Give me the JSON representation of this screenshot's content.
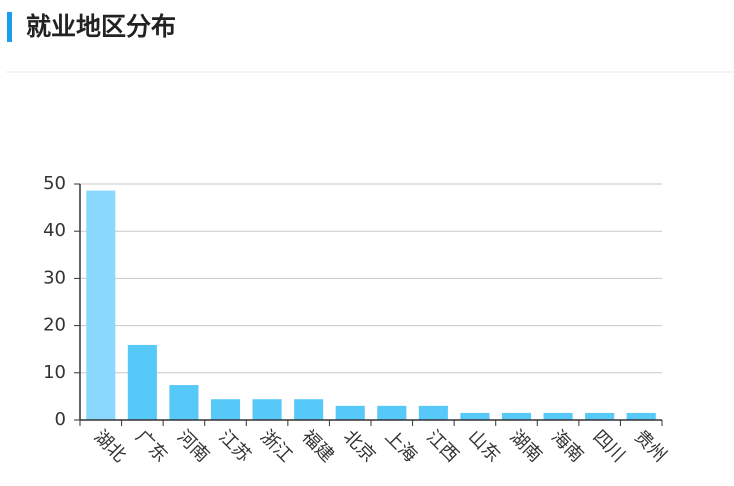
{
  "chart_data": {
    "type": "bar",
    "title": "就业地区分布",
    "categories": [
      "湖北",
      "广东",
      "河南",
      "江苏",
      "浙江",
      "福建",
      "北京",
      "上海",
      "江西",
      "山东",
      "湖南",
      "海南",
      "四川",
      "贵州"
    ],
    "values": [
      48.6,
      15.9,
      7.4,
      4.4,
      4.4,
      4.4,
      3.0,
      3.0,
      3.0,
      1.5,
      1.5,
      1.5,
      1.5,
      1.5
    ],
    "colors": [
      "#8ad8fd",
      "#56c9f9",
      "#56c9f9",
      "#56c9f9",
      "#56c9f9",
      "#56c9f9",
      "#56c9f9",
      "#56c9f9",
      "#56c9f9",
      "#56c9f9",
      "#56c9f9",
      "#56c9f9",
      "#56c9f9",
      "#56c9f9"
    ],
    "ylim": [
      0,
      50
    ],
    "yticks": [
      0,
      10,
      20,
      30,
      40,
      50
    ],
    "grid": true
  }
}
